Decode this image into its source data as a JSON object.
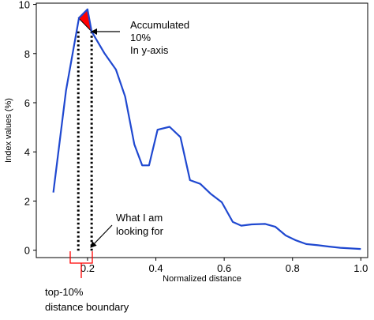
{
  "chart_data": {
    "type": "line",
    "xlabel": "Normalized distance",
    "ylabel": "Index values (%)",
    "xlim": [
      0.05,
      1.02
    ],
    "ylim": [
      -0.3,
      10.05
    ],
    "xticks": [
      "0.2",
      "0.4",
      "0.6",
      "0.8",
      "1.0"
    ],
    "yticks": [
      "0",
      "2",
      "4",
      "6",
      "8",
      "10"
    ],
    "grid": false,
    "line_color": "#1f48d0",
    "highlight_color": "#ff0000",
    "series": [
      {
        "x": [
          0.1,
          0.137,
          0.175,
          0.2,
          0.212,
          0.25,
          0.283,
          0.31,
          0.337,
          0.36,
          0.38,
          0.405,
          0.44,
          0.472,
          0.5,
          0.53,
          0.56,
          0.593,
          0.625,
          0.65,
          0.68,
          0.72,
          0.75,
          0.78,
          0.81,
          0.84,
          0.875,
          0.905,
          0.94,
          1.0
        ],
        "y": [
          2.35,
          6.5,
          9.45,
          9.8,
          8.9,
          8.0,
          7.35,
          6.25,
          4.3,
          3.45,
          3.45,
          4.9,
          5.02,
          4.6,
          2.85,
          2.7,
          2.3,
          1.95,
          1.15,
          1.0,
          1.05,
          1.07,
          0.95,
          0.6,
          0.4,
          0.25,
          0.2,
          0.15,
          0.1,
          0.05
        ]
      }
    ],
    "highlight_region": {
      "x": [
        0.173,
        0.2,
        0.212
      ],
      "y_top": [
        9.45,
        9.8,
        8.9
      ],
      "y_base": 8.9
    },
    "boundary_lines_x": [
      0.173,
      0.212
    ],
    "annotations": {
      "accumulated_line1": "Accumulated",
      "accumulated_line2": "10%",
      "accumulated_line3": "In y-axis",
      "looking_line1": "What I am",
      "looking_line2": "looking for",
      "boundary_line1": "top-10%",
      "boundary_line2": "distance boundary"
    }
  }
}
